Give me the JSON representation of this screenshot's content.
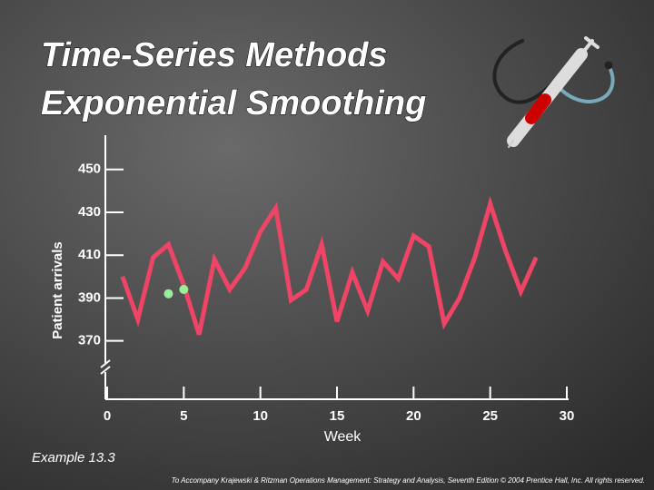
{
  "chart_data": {
    "type": "line",
    "title": [
      "Time-Series Methods",
      "Exponential Smoothing"
    ],
    "y_label": "Patient arrivals",
    "x_label": "Week",
    "annotation": "Example 13.3",
    "footer": "To Accompany Krajewski & Ritzman Operations Management: Strategy and Analysis, Seventh Edition © 2004 Prentice Hall, Inc. All rights reserved.",
    "xlim": [
      0,
      30
    ],
    "xticks": [
      0,
      5,
      10,
      15,
      20,
      25,
      30
    ],
    "ylim": [
      358,
      466
    ],
    "yticks": [
      370,
      390,
      410,
      430,
      450
    ],
    "series": [
      {
        "color": "#ee4466",
        "style": "line",
        "x": [
          1,
          2,
          3,
          4,
          5,
          6,
          7,
          8,
          9,
          10,
          11,
          12,
          13,
          14,
          15,
          16,
          17,
          18,
          19,
          20,
          21,
          22,
          23,
          24,
          25,
          26,
          27,
          28
        ],
        "values": [
          400,
          380,
          409,
          415,
          396,
          373,
          408,
          394,
          404,
          421,
          432,
          389,
          394,
          415,
          379,
          402,
          384,
          407,
          399,
          419,
          414,
          378,
          390,
          409,
          434,
          412,
          393,
          409
        ]
      },
      {
        "color": "#99ee99",
        "style": "dots",
        "x": [
          4,
          5
        ],
        "values": [
          392,
          394
        ]
      }
    ]
  }
}
